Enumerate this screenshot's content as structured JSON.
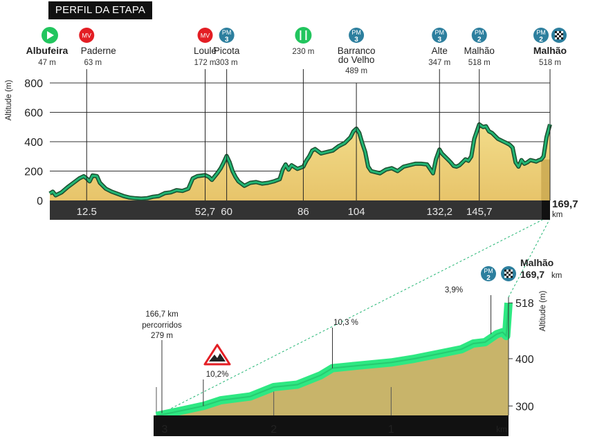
{
  "header": {
    "title": "PERFIL DA ETAPA"
  },
  "colors": {
    "fill": "#f2dc8a",
    "fill_bottom": "#e7c46a",
    "line": "#22b573",
    "line_dark": "#1a4d2e",
    "bar": "#333333",
    "badge": "#2d7f9e",
    "mv": "#e31e24",
    "start": "#22c55e",
    "food": "#22c55e",
    "climb_fill": "#c8b46a",
    "climb_line": "#2ee882"
  },
  "main_chart": {
    "type": "area",
    "ylabel": "Altitude (m)",
    "yticks": [
      0,
      200,
      400,
      600,
      800
    ],
    "ylim": [
      0,
      800
    ],
    "xlim": [
      0,
      169.7
    ],
    "total_km": "169,7",
    "total_unit": "km",
    "km_marks": [
      "12.5",
      "52,7",
      "60",
      "86",
      "104",
      "132,2",
      "145,7"
    ],
    "km_values": [
      12.5,
      52.7,
      60,
      86,
      104,
      132.2,
      145.7
    ],
    "waypoints": [
      {
        "name": "Albufeira",
        "alt": "47 m",
        "km": 0,
        "type": "start",
        "bold": true
      },
      {
        "name": "Paderne",
        "alt": "63 m",
        "km": 12.5,
        "type": "mv",
        "bold": false,
        "badge": "MV"
      },
      {
        "name": "Loulé",
        "alt": "172 m",
        "km": 52.7,
        "type": "mv",
        "bold": false,
        "badge": "MV"
      },
      {
        "name": "Picota",
        "alt": "303 m",
        "km": 60,
        "type": "pm",
        "bold": false,
        "badge": "PM",
        "cat": "3"
      },
      {
        "name": "",
        "alt": "230 m",
        "km": 86,
        "type": "food",
        "bold": false
      },
      {
        "name": "Barranco",
        "name2": "do Velho",
        "alt": "489 m",
        "km": 104,
        "type": "pm",
        "bold": false,
        "badge": "PM",
        "cat": "3"
      },
      {
        "name": "Alte",
        "alt": "347 m",
        "km": 132.2,
        "type": "pm",
        "bold": false,
        "badge": "PM",
        "cat": "3"
      },
      {
        "name": "Malhão",
        "alt": "518 m",
        "km": 145.7,
        "type": "pm",
        "bold": false,
        "badge": "PM",
        "cat": "2"
      },
      {
        "name": "Malhão",
        "alt": "518 m",
        "km": 169.7,
        "type": "finish",
        "bold": true,
        "badge": "PM",
        "cat": "2"
      }
    ],
    "profile": [
      [
        0,
        47
      ],
      [
        1,
        60
      ],
      [
        2,
        35
      ],
      [
        4,
        55
      ],
      [
        6,
        90
      ],
      [
        8,
        120
      ],
      [
        10,
        150
      ],
      [
        11.5,
        165
      ],
      [
        12.5,
        150
      ],
      [
        13.5,
        130
      ],
      [
        14.5,
        170
      ],
      [
        16,
        165
      ],
      [
        17,
        120
      ],
      [
        19,
        80
      ],
      [
        21,
        60
      ],
      [
        23,
        45
      ],
      [
        25,
        30
      ],
      [
        27,
        20
      ],
      [
        29,
        15
      ],
      [
        31,
        12
      ],
      [
        33,
        15
      ],
      [
        35,
        25
      ],
      [
        37,
        30
      ],
      [
        39,
        50
      ],
      [
        41,
        55
      ],
      [
        43,
        70
      ],
      [
        45,
        65
      ],
      [
        47,
        80
      ],
      [
        48.5,
        150
      ],
      [
        50,
        165
      ],
      [
        52.7,
        172
      ],
      [
        54,
        160
      ],
      [
        55,
        140
      ],
      [
        56,
        165
      ],
      [
        57,
        190
      ],
      [
        58,
        220
      ],
      [
        59,
        260
      ],
      [
        60,
        303
      ],
      [
        61,
        260
      ],
      [
        62,
        200
      ],
      [
        63,
        160
      ],
      [
        64,
        130
      ],
      [
        66,
        100
      ],
      [
        68,
        120
      ],
      [
        70,
        125
      ],
      [
        72,
        115
      ],
      [
        74,
        120
      ],
      [
        76,
        130
      ],
      [
        78,
        145
      ],
      [
        79,
        210
      ],
      [
        80,
        245
      ],
      [
        81,
        210
      ],
      [
        82,
        240
      ],
      [
        84,
        215
      ],
      [
        86,
        230
      ],
      [
        87,
        270
      ],
      [
        88,
        300
      ],
      [
        89,
        340
      ],
      [
        90,
        350
      ],
      [
        92,
        320
      ],
      [
        94,
        330
      ],
      [
        96,
        340
      ],
      [
        98,
        370
      ],
      [
        100,
        390
      ],
      [
        102,
        430
      ],
      [
        103,
        470
      ],
      [
        104,
        489
      ],
      [
        105,
        460
      ],
      [
        106,
        390
      ],
      [
        107,
        330
      ],
      [
        108,
        230
      ],
      [
        109,
        200
      ],
      [
        110,
        195
      ],
      [
        112,
        185
      ],
      [
        114,
        210
      ],
      [
        116,
        220
      ],
      [
        118,
        200
      ],
      [
        120,
        230
      ],
      [
        122,
        240
      ],
      [
        124,
        250
      ],
      [
        126,
        250
      ],
      [
        128,
        245
      ],
      [
        130,
        185
      ],
      [
        131,
        280
      ],
      [
        132.2,
        347
      ],
      [
        133,
        320
      ],
      [
        134,
        300
      ],
      [
        135,
        280
      ],
      [
        136,
        260
      ],
      [
        137,
        235
      ],
      [
        138,
        230
      ],
      [
        139,
        240
      ],
      [
        140,
        260
      ],
      [
        141,
        280
      ],
      [
        142,
        270
      ],
      [
        143,
        300
      ],
      [
        144,
        420
      ],
      [
        145.7,
        518
      ],
      [
        147,
        500
      ],
      [
        148,
        505
      ],
      [
        149,
        470
      ],
      [
        150,
        460
      ],
      [
        151,
        440
      ],
      [
        152,
        420
      ],
      [
        153,
        410
      ],
      [
        154,
        400
      ],
      [
        155,
        390
      ],
      [
        156,
        380
      ],
      [
        157,
        360
      ],
      [
        158,
        260
      ],
      [
        159,
        230
      ],
      [
        160,
        275
      ],
      [
        161,
        250
      ],
      [
        162,
        260
      ],
      [
        163,
        275
      ],
      [
        164,
        270
      ],
      [
        165,
        265
      ],
      [
        166,
        275
      ],
      [
        166.7,
        279
      ],
      [
        167.5,
        300
      ],
      [
        168.5,
        430
      ],
      [
        169.7,
        518
      ]
    ]
  },
  "climb_chart": {
    "type": "area",
    "title": "Malhão",
    "title_km": "169,7 km",
    "ylabel": "Altitude (m)",
    "yticks": [
      300,
      400,
      518
    ],
    "ylim": [
      280,
      530
    ],
    "x_ticks": [
      "3",
      "2",
      "1",
      "km"
    ],
    "x_tick_values": [
      3,
      2,
      1
    ],
    "start_label": "166,7 km",
    "start_label2": "percorridos",
    "start_alt": "279 m",
    "gradients": [
      {
        "label": "10,2%",
        "km_left": 2.6
      },
      {
        "label": "10,3 %",
        "km_left": 1.5
      },
      {
        "label": "3,9%",
        "km_left": 0.15
      }
    ],
    "profile": [
      [
        3,
        279
      ],
      [
        2.75,
        292
      ],
      [
        2.6,
        300
      ],
      [
        2.45,
        312
      ],
      [
        2.2,
        320
      ],
      [
        2.0,
        340
      ],
      [
        1.8,
        345
      ],
      [
        1.6,
        365
      ],
      [
        1.5,
        380
      ],
      [
        1.3,
        385
      ],
      [
        1.0,
        392
      ],
      [
        0.8,
        400
      ],
      [
        0.6,
        410
      ],
      [
        0.4,
        420
      ],
      [
        0.3,
        432
      ],
      [
        0.2,
        435
      ],
      [
        0.1,
        452
      ],
      [
        0.05,
        456
      ],
      [
        0.02,
        448
      ],
      [
        0,
        518
      ]
    ]
  }
}
